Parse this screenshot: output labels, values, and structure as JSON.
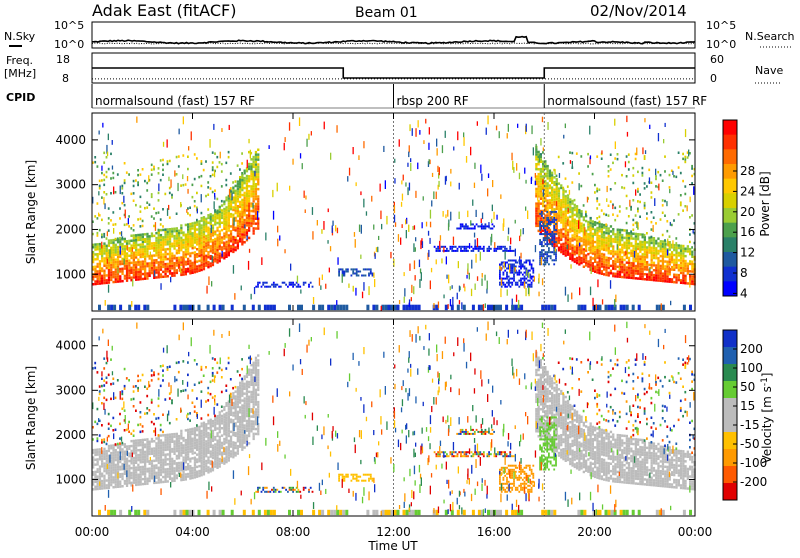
{
  "header": {
    "station": "Adak East (fitACF)",
    "beam": "Beam 01",
    "date": "02/Nov/2014"
  },
  "noise_panel": {
    "left_label": "N.Sky",
    "right_label": "N.Search",
    "left_ticks": [
      "10^5",
      "10^0"
    ],
    "right_ticks": [
      "10^5",
      "10^0"
    ],
    "scale": "log"
  },
  "freq_panel": {
    "freq_label_1": "Freq.",
    "freq_label_2": "[MHz]",
    "nave_label": "Nave",
    "cpid_label": "CPID",
    "freq_ticks": [
      "18",
      "8"
    ],
    "nave_ticks": [
      "60",
      "0"
    ],
    "cpid_segments": [
      {
        "name": "normalsound (fast) 157 RF",
        "start_h": 0,
        "end_h": 12
      },
      {
        "name": "rbsp 200 RF",
        "start_h": 12,
        "end_h": 18
      },
      {
        "name": "normalsound (fast) 157 RF",
        "start_h": 18,
        "end_h": 24
      }
    ]
  },
  "power_panel": {
    "ylabel": "Slant Range [km]",
    "colorbar_label": "Power [dB]",
    "colorbar_ticks": [
      "28",
      "24",
      "20",
      "16",
      "12",
      "8",
      "4"
    ],
    "colorbar_colors": [
      "#ff0000",
      "#ff3000",
      "#ff6a00",
      "#ff9b00",
      "#ffc800",
      "#d8d000",
      "#9acc33",
      "#4ca04c",
      "#2a8068",
      "#1f5aa0",
      "#1030d0",
      "#0000ff"
    ]
  },
  "velocity_panel": {
    "ylabel": "Slant Range [km]",
    "colorbar_label": "Velocity [m s^-1]",
    "colorbar_ticks": [
      "200",
      "100",
      "50",
      "15",
      "-15",
      "-50",
      "-100",
      "-200"
    ],
    "colorbar_colors": [
      "#1030c8",
      "#2060b0",
      "#2a8a50",
      "#66cc33",
      "#bcbcbc",
      "#bcbcbc",
      "#ffc000",
      "#ff9a00",
      "#ff5a00",
      "#e00000"
    ],
    "ground_scatter_color": "#bcbcbc"
  },
  "x_axis": {
    "label": "Time UT",
    "ticks": [
      "00:00",
      "04:00",
      "08:00",
      "12:00",
      "16:00",
      "20:00",
      "00:00"
    ]
  },
  "chart_data": {
    "type": "heatmap",
    "title": "Adak East (fitACF)",
    "subtitle": "Beam 01",
    "xlabel": "Time UT",
    "ylabel": "Slant Range [km]",
    "xlim": [
      0,
      24
    ],
    "ylim": [
      180,
      4600
    ],
    "y_ticks": [
      1000,
      2000,
      3000,
      4000
    ],
    "frequency_mhz": [
      {
        "start_h": 0,
        "end_h": 10,
        "value": 14
      },
      {
        "start_h": 10,
        "end_h": 18,
        "value": 10
      },
      {
        "start_h": 18,
        "end_h": 24,
        "value": 14
      }
    ],
    "nave_dotted": 10,
    "noise_search_baseline": "10^1"
  }
}
